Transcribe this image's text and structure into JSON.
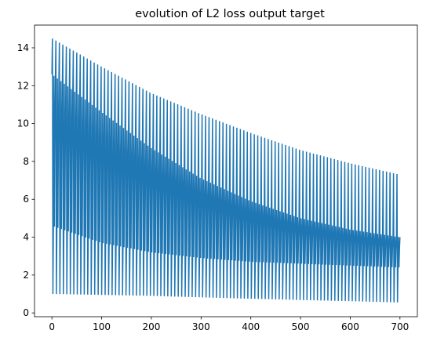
{
  "chart_data": {
    "type": "line",
    "title": "evolution of L2 loss output target",
    "xlabel": "",
    "ylabel": "",
    "xlim": [
      -35,
      735
    ],
    "ylim": [
      -0.2,
      15.2
    ],
    "xticks": [
      0,
      100,
      200,
      300,
      400,
      500,
      600,
      700
    ],
    "yticks": [
      0,
      2,
      4,
      6,
      8,
      10,
      12,
      14
    ],
    "grid": false,
    "legend": "none",
    "series_color": "#1f77b4",
    "series": [
      {
        "cycle_length": 7,
        "x_range": [
          0,
          700
        ],
        "envelopes": {
          "upper_peak": {
            "x": [
              0,
              100,
              200,
              300,
              400,
              500,
              600,
              700
            ],
            "y": [
              14.5,
              13.0,
              11.6,
              10.5,
              9.5,
              8.6,
              7.9,
              7.3
            ]
          },
          "upper_band": {
            "x": [
              0,
              100,
              200,
              300,
              400,
              500,
              600,
              700
            ],
            "y": [
              12.6,
              10.6,
              8.7,
              7.1,
              5.9,
              5.0,
              4.4,
              4.0
            ]
          },
          "lower_band": {
            "x": [
              0,
              100,
              200,
              300,
              400,
              500,
              600,
              700
            ],
            "y": [
              4.6,
              3.7,
              3.2,
              2.9,
              2.7,
              2.6,
              2.5,
              2.4
            ]
          },
          "lower_trough": {
            "x": [
              0,
              100,
              200,
              300,
              400,
              500,
              600,
              700
            ],
            "y": [
              1.0,
              0.95,
              0.9,
              0.82,
              0.75,
              0.68,
              0.62,
              0.55
            ]
          }
        }
      }
    ]
  }
}
